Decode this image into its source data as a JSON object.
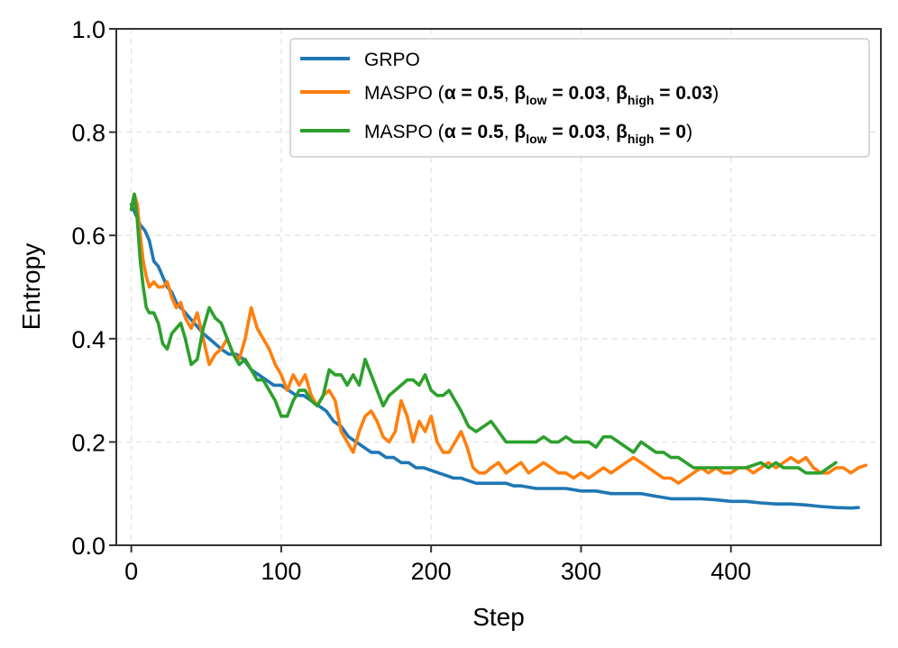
{
  "chart_data": {
    "type": "line",
    "title": "",
    "xlabel": "Step",
    "ylabel": "Entropy",
    "xlim": [
      -10,
      500
    ],
    "ylim": [
      0.0,
      1.0
    ],
    "xticks": [
      0,
      100,
      200,
      300,
      400
    ],
    "xtick_labels": [
      "0",
      "100",
      "200",
      "300",
      "400"
    ],
    "yticks": [
      0.0,
      0.2,
      0.4,
      0.6,
      0.8,
      1.0
    ],
    "ytick_labels": [
      "0.0",
      "0.2",
      "0.4",
      "0.6",
      "0.8",
      "1.0"
    ],
    "grid": true,
    "legend_position": "top-right",
    "series": [
      {
        "name": "GRPO",
        "legend": {
          "prefix": "GRPO",
          "alpha": "",
          "beta_low": "",
          "beta_high": ""
        },
        "color": "#1f77b4",
        "x": [
          0,
          3,
          6,
          9,
          12,
          15,
          18,
          21,
          24,
          27,
          30,
          33,
          36,
          39,
          42,
          45,
          48,
          52,
          56,
          60,
          65,
          70,
          75,
          80,
          85,
          90,
          95,
          100,
          105,
          110,
          115,
          120,
          125,
          130,
          135,
          140,
          145,
          150,
          155,
          160,
          165,
          170,
          175,
          180,
          185,
          190,
          195,
          200,
          205,
          210,
          215,
          220,
          225,
          230,
          235,
          240,
          245,
          250,
          255,
          260,
          270,
          280,
          290,
          300,
          310,
          320,
          330,
          340,
          350,
          360,
          370,
          380,
          390,
          400,
          410,
          420,
          430,
          440,
          450,
          460,
          470,
          480,
          485
        ],
        "y": [
          0.66,
          0.64,
          0.62,
          0.61,
          0.59,
          0.55,
          0.54,
          0.52,
          0.5,
          0.49,
          0.47,
          0.46,
          0.45,
          0.44,
          0.43,
          0.42,
          0.41,
          0.4,
          0.39,
          0.38,
          0.37,
          0.37,
          0.36,
          0.34,
          0.33,
          0.32,
          0.31,
          0.31,
          0.3,
          0.29,
          0.29,
          0.28,
          0.27,
          0.26,
          0.24,
          0.23,
          0.21,
          0.2,
          0.19,
          0.18,
          0.18,
          0.17,
          0.17,
          0.16,
          0.16,
          0.15,
          0.15,
          0.145,
          0.14,
          0.135,
          0.13,
          0.13,
          0.125,
          0.12,
          0.12,
          0.12,
          0.12,
          0.12,
          0.115,
          0.115,
          0.11,
          0.11,
          0.11,
          0.105,
          0.105,
          0.1,
          0.1,
          0.1,
          0.095,
          0.09,
          0.09,
          0.09,
          0.088,
          0.085,
          0.085,
          0.082,
          0.08,
          0.08,
          0.078,
          0.075,
          0.073,
          0.072,
          0.073
        ]
      },
      {
        "name": "MASPO (α = 0.5, β_low = 0.03, β_high = 0.03)",
        "legend": {
          "prefix": "MASPO (",
          "alpha": "α = 0.5",
          "beta_low": "0.03",
          "beta_high": "0.03"
        },
        "color": "#ff7f0e",
        "x": [
          0,
          2,
          4,
          6,
          8,
          10,
          12,
          15,
          18,
          21,
          24,
          27,
          30,
          33,
          36,
          40,
          44,
          48,
          52,
          56,
          60,
          64,
          68,
          72,
          76,
          80,
          84,
          88,
          92,
          96,
          100,
          104,
          108,
          112,
          116,
          120,
          124,
          128,
          132,
          136,
          140,
          144,
          148,
          152,
          156,
          160,
          164,
          168,
          172,
          176,
          180,
          184,
          188,
          192,
          196,
          200,
          204,
          208,
          212,
          216,
          220,
          224,
          228,
          232,
          236,
          240,
          245,
          250,
          255,
          260,
          265,
          270,
          275,
          280,
          285,
          290,
          295,
          300,
          305,
          310,
          315,
          320,
          325,
          330,
          335,
          340,
          345,
          350,
          355,
          360,
          365,
          370,
          375,
          380,
          385,
          390,
          395,
          400,
          405,
          410,
          415,
          420,
          425,
          430,
          435,
          440,
          445,
          450,
          455,
          460,
          465,
          470,
          475,
          480,
          485,
          490
        ],
        "y": [
          0.65,
          0.68,
          0.66,
          0.6,
          0.55,
          0.52,
          0.5,
          0.51,
          0.5,
          0.5,
          0.51,
          0.48,
          0.46,
          0.47,
          0.44,
          0.42,
          0.45,
          0.4,
          0.35,
          0.37,
          0.38,
          0.4,
          0.37,
          0.36,
          0.4,
          0.46,
          0.42,
          0.4,
          0.38,
          0.35,
          0.33,
          0.3,
          0.33,
          0.31,
          0.33,
          0.29,
          0.27,
          0.29,
          0.3,
          0.28,
          0.22,
          0.2,
          0.18,
          0.22,
          0.25,
          0.26,
          0.24,
          0.21,
          0.2,
          0.22,
          0.28,
          0.25,
          0.2,
          0.24,
          0.22,
          0.25,
          0.2,
          0.18,
          0.18,
          0.2,
          0.22,
          0.19,
          0.15,
          0.14,
          0.14,
          0.15,
          0.16,
          0.14,
          0.15,
          0.16,
          0.14,
          0.15,
          0.16,
          0.15,
          0.14,
          0.14,
          0.13,
          0.14,
          0.13,
          0.14,
          0.15,
          0.14,
          0.15,
          0.16,
          0.17,
          0.16,
          0.15,
          0.14,
          0.13,
          0.13,
          0.12,
          0.13,
          0.14,
          0.15,
          0.14,
          0.15,
          0.14,
          0.14,
          0.15,
          0.15,
          0.14,
          0.15,
          0.16,
          0.15,
          0.16,
          0.17,
          0.16,
          0.17,
          0.15,
          0.14,
          0.14,
          0.15,
          0.15,
          0.14,
          0.15,
          0.155
        ]
      },
      {
        "name": "MASPO (α = 0.5, β_low = 0.03, β_high = 0)",
        "legend": {
          "prefix": "MASPO (",
          "alpha": "α = 0.5",
          "beta_low": "0.03",
          "beta_high": "0"
        },
        "color": "#2ca02c",
        "x": [
          0,
          2,
          4,
          6,
          8,
          10,
          12,
          15,
          18,
          21,
          24,
          27,
          30,
          33,
          36,
          40,
          44,
          48,
          52,
          56,
          60,
          64,
          68,
          72,
          76,
          80,
          84,
          88,
          92,
          96,
          100,
          104,
          108,
          112,
          116,
          120,
          124,
          128,
          132,
          136,
          140,
          144,
          148,
          152,
          156,
          160,
          164,
          168,
          172,
          176,
          180,
          184,
          188,
          192,
          196,
          200,
          204,
          208,
          212,
          216,
          220,
          225,
          230,
          235,
          240,
          245,
          250,
          255,
          260,
          265,
          270,
          275,
          280,
          285,
          290,
          295,
          300,
          305,
          310,
          315,
          320,
          325,
          330,
          335,
          340,
          345,
          350,
          355,
          360,
          365,
          370,
          375,
          380,
          385,
          390,
          395,
          400,
          405,
          410,
          415,
          420,
          425,
          430,
          435,
          440,
          445,
          450,
          455,
          460,
          465,
          470
        ],
        "y": [
          0.65,
          0.68,
          0.63,
          0.55,
          0.5,
          0.46,
          0.45,
          0.45,
          0.43,
          0.39,
          0.38,
          0.41,
          0.42,
          0.43,
          0.4,
          0.35,
          0.36,
          0.42,
          0.46,
          0.44,
          0.43,
          0.4,
          0.37,
          0.35,
          0.36,
          0.34,
          0.32,
          0.32,
          0.3,
          0.28,
          0.25,
          0.25,
          0.28,
          0.3,
          0.3,
          0.28,
          0.27,
          0.29,
          0.34,
          0.33,
          0.33,
          0.31,
          0.33,
          0.31,
          0.36,
          0.33,
          0.3,
          0.27,
          0.29,
          0.3,
          0.31,
          0.32,
          0.32,
          0.31,
          0.33,
          0.3,
          0.29,
          0.29,
          0.3,
          0.28,
          0.26,
          0.23,
          0.22,
          0.23,
          0.24,
          0.22,
          0.2,
          0.2,
          0.2,
          0.2,
          0.2,
          0.21,
          0.2,
          0.2,
          0.21,
          0.2,
          0.2,
          0.2,
          0.19,
          0.21,
          0.21,
          0.2,
          0.19,
          0.18,
          0.2,
          0.19,
          0.18,
          0.18,
          0.17,
          0.17,
          0.16,
          0.15,
          0.15,
          0.15,
          0.15,
          0.15,
          0.15,
          0.15,
          0.15,
          0.155,
          0.16,
          0.15,
          0.16,
          0.15,
          0.15,
          0.15,
          0.14,
          0.14,
          0.14,
          0.15,
          0.16
        ]
      }
    ]
  }
}
